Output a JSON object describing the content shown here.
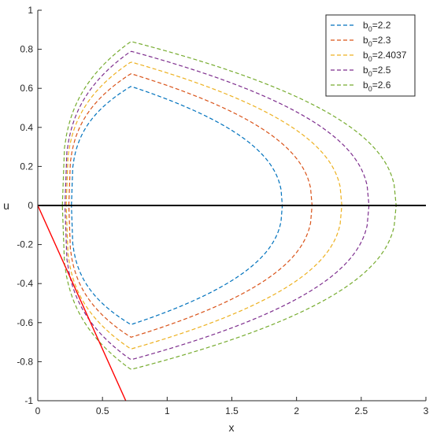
{
  "chart_data": {
    "type": "line",
    "xlabel": "x",
    "ylabel": "u",
    "xlim": [
      0,
      3
    ],
    "ylim": [
      -1,
      1
    ],
    "grid": false,
    "legend_position": "top-right",
    "xticks": [
      "0",
      "0.5",
      "1",
      "1.5",
      "2",
      "2.5",
      "3"
    ],
    "yticks": [
      "1",
      "0.8",
      "0.6",
      "0.4",
      "0.2",
      "0",
      "-0.2",
      "-0.4",
      "-0.6",
      "-0.8",
      "-1"
    ],
    "series": [
      {
        "name": "b0=2.2",
        "label_base": "b",
        "label_sub": "0",
        "label_value": "=2.2",
        "color": "#0072BD",
        "style": "dashed",
        "x_left": 0.26,
        "x_min_point": 0.72,
        "x_right": 1.89,
        "u_max": 0.61
      },
      {
        "name": "b0=2.3",
        "label_base": "b",
        "label_sub": "0",
        "label_value": "=2.3",
        "color": "#D95319",
        "style": "dashed",
        "x_left": 0.24,
        "x_min_point": 0.72,
        "x_right": 2.12,
        "u_max": 0.675
      },
      {
        "name": "b0=2.4037",
        "label_base": "b",
        "label_sub": "0",
        "label_value": "=2.4037",
        "color": "#EDB120",
        "style": "dashed",
        "x_left": 0.22,
        "x_min_point": 0.72,
        "x_right": 2.35,
        "u_max": 0.735
      },
      {
        "name": "b0=2.5",
        "label_base": "b",
        "label_sub": "0",
        "label_value": "=2.5",
        "color": "#7E2F8E",
        "style": "dashed",
        "x_left": 0.21,
        "x_min_point": 0.72,
        "x_right": 2.56,
        "u_max": 0.79
      },
      {
        "name": "b0=2.6",
        "label_base": "b",
        "label_sub": "0",
        "label_value": "=2.6",
        "color": "#77AC30",
        "style": "dashed",
        "x_left": 0.19,
        "x_min_point": 0.72,
        "x_right": 2.77,
        "u_max": 0.84
      }
    ],
    "reference_lines": [
      {
        "color": "#000000",
        "x": [
          0,
          3
        ],
        "y": [
          0,
          0
        ]
      },
      {
        "color": "#FF0000",
        "x": [
          0,
          0.68
        ],
        "y": [
          0,
          -1
        ]
      }
    ]
  }
}
